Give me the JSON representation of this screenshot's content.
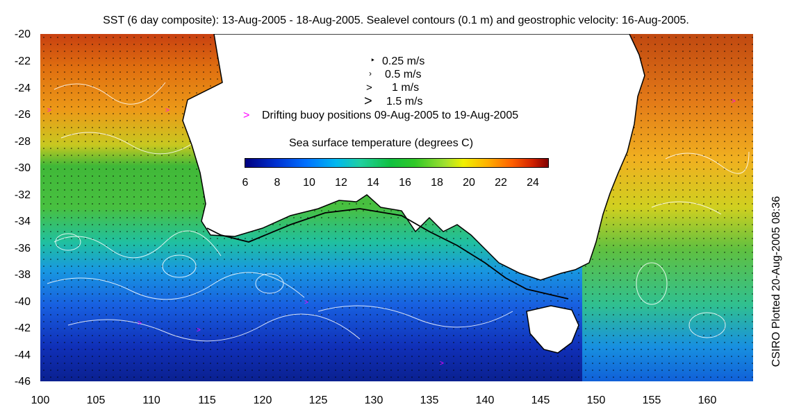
{
  "title": "SST (6 day composite): 13-Aug-2005 - 18-Aug-2005. Sealevel contours (0.1 m) and geostrophic velocity: 16-Aug-2005.",
  "side_label": "CSIRO Plotted 20-Aug-2005 08:36",
  "y_axis": {
    "ticks": [
      "-20",
      "-22",
      "-24",
      "-26",
      "-28",
      "-30",
      "-32",
      "-34",
      "-36",
      "-38",
      "-40",
      "-42",
      "-44",
      "-46"
    ]
  },
  "x_axis": {
    "ticks": [
      "100",
      "105",
      "110",
      "115",
      "120",
      "125",
      "130",
      "135",
      "140",
      "145",
      "150",
      "155",
      "160"
    ]
  },
  "velocity_legend": [
    {
      "label": "0.25 m/s"
    },
    {
      "label": "0.5 m/s"
    },
    {
      "label": "1 m/s"
    },
    {
      "label": "1.5 m/s"
    }
  ],
  "buoy_legend": {
    "label": "Drifting buoy positions 09-Aug-2005 to 19-Aug-2005",
    "color": "#ff00ff"
  },
  "colorbar": {
    "title": "Sea surface temperature (degrees C)",
    "ticks": [
      "6",
      "8",
      "10",
      "12",
      "14",
      "16",
      "18",
      "20",
      "22",
      "24"
    ],
    "range": [
      6,
      25
    ]
  },
  "map": {
    "lon_range": [
      100,
      164
    ],
    "lat_range": [
      -46,
      -20
    ],
    "land_color": "#ffffff"
  }
}
